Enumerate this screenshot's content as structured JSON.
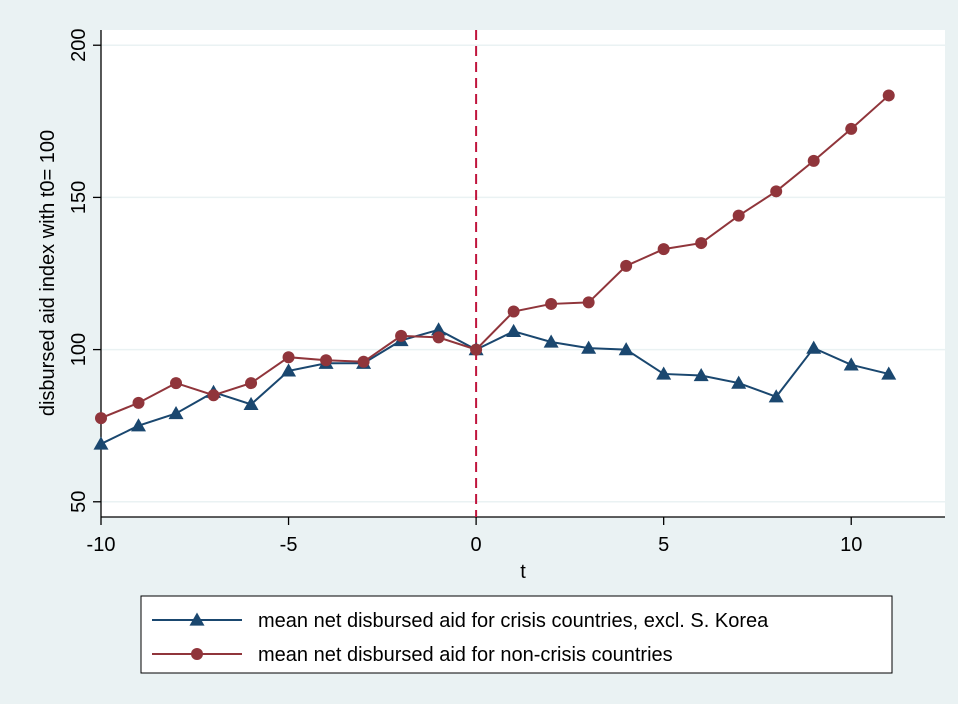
{
  "chart_data": {
    "type": "line",
    "title": "",
    "xlabel": "t",
    "ylabel": "disbursed aid index with t0= 100",
    "xlim": [
      -10,
      12.5
    ],
    "ylim": [
      45,
      205
    ],
    "x_ticks": [
      -10,
      -5,
      0,
      5,
      10
    ],
    "y_ticks": [
      50,
      100,
      150,
      200
    ],
    "x_tick_labels": [
      "-10",
      "-5",
      "0",
      "5",
      "10"
    ],
    "y_tick_labels": [
      "50",
      "100",
      "150",
      "200"
    ],
    "grid": "horizontal",
    "reference_line": {
      "x": 0,
      "style": "dashed",
      "color": "#c0143c"
    },
    "x": [
      -10,
      -9,
      -8,
      -7,
      -6,
      -5,
      -4,
      -3,
      -2,
      -1,
      0,
      1,
      2,
      3,
      4,
      5,
      6,
      7,
      8,
      9,
      10,
      11
    ],
    "series": [
      {
        "name": "mean net disbursed aid for crisis countries, excl. S. Korea",
        "marker": "triangle",
        "color": "#1a476f",
        "values": [
          69,
          75,
          79,
          86,
          82,
          93,
          95.5,
          95.5,
          103,
          106.5,
          100,
          106,
          102.5,
          100.5,
          100,
          92,
          91.5,
          89,
          84.5,
          100.5,
          95,
          92
        ]
      },
      {
        "name": "mean net disbursed aid for non-crisis countries",
        "marker": "circle",
        "color": "#90353b",
        "values": [
          77.5,
          82.5,
          89,
          85,
          89,
          97.5,
          96.5,
          96,
          104.5,
          104,
          100,
          112.5,
          115,
          115.5,
          127.5,
          133,
          135,
          144,
          152,
          162,
          172.5,
          183.5
        ]
      }
    ],
    "legend_position": "bottom"
  }
}
